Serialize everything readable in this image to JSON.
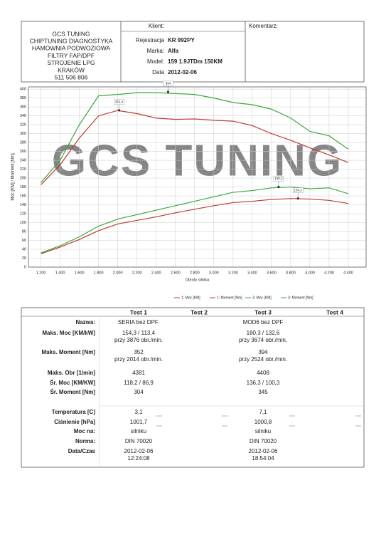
{
  "header": {
    "company": [
      "GCS TUNING",
      "CHIPTUNING DIAGNOSTYKA",
      "HAMOWNIA PODWOZIOWA",
      "FILTRY FAP/DPF",
      "STROJENIE LPG",
      "KRAKÓW",
      "511 506 806"
    ],
    "client_title": "Klient:",
    "fields": [
      {
        "label": "Rejestracja",
        "value": "KR 992PY"
      },
      {
        "label": "Marka:",
        "value": "Alfa"
      },
      {
        "label": "Model:",
        "value": "159 1.9JTDm 150KM"
      },
      {
        "label": "Data",
        "value": "2012-02-06"
      }
    ],
    "comment_title": "Komentarz:"
  },
  "chart_data": {
    "type": "line",
    "watermark": "GCS TUNING",
    "x_label": "Obroty silnika",
    "y_label": "Moc [KM] / Moment [Nm]",
    "x": [
      1200,
      1400,
      1600,
      1800,
      2000,
      2200,
      2400,
      2600,
      2800,
      3000,
      3200,
      3400,
      3600,
      3800,
      4000,
      4200,
      4400
    ],
    "series": [
      {
        "name": "1: Moc [KM]",
        "color": "#c0392b",
        "values": [
          30,
          45,
          62,
          82,
          97,
          105,
          113,
          122,
          130,
          138,
          145,
          148,
          152,
          154,
          153,
          150,
          143
        ]
      },
      {
        "name": "1: Moment [Nm]",
        "color": "#c0392b",
        "values": [
          185,
          230,
          290,
          340,
          352,
          345,
          335,
          332,
          333,
          330,
          328,
          318,
          300,
          285,
          268,
          252,
          235
        ]
      },
      {
        "name": "3: Moc [KM]",
        "color": "#3aa83a",
        "values": [
          32,
          48,
          68,
          92,
          108,
          118,
          128,
          138,
          148,
          158,
          168,
          172,
          178,
          180,
          176,
          178,
          165
        ]
      },
      {
        "name": "3: Moment [Nm]",
        "color": "#3aa83a",
        "values": [
          190,
          240,
          320,
          385,
          388,
          392,
          392,
          390,
          388,
          380,
          370,
          365,
          355,
          335,
          305,
          295,
          265
        ]
      }
    ],
    "annotations": [
      {
        "label": "352,4",
        "x": 2014,
        "y": 352.4
      },
      {
        "label": "394",
        "x": 2524,
        "y": 394
      },
      {
        "label": "180,3",
        "x": 3674,
        "y": 180.3
      },
      {
        "label": "154,3",
        "x": 3876,
        "y": 154.3
      }
    ],
    "xlim": [
      1070,
      4585
    ],
    "ylim": [
      0,
      405
    ],
    "xticks": [
      {
        "value": 1200,
        "label": "1.200"
      },
      {
        "value": 1400,
        "label": "1.400"
      },
      {
        "value": 1600,
        "label": "1.600"
      },
      {
        "value": 1800,
        "label": "1.800"
      },
      {
        "value": 2000,
        "label": "2.000"
      },
      {
        "value": 2200,
        "label": "2.200"
      },
      {
        "value": 2400,
        "label": "2.400"
      },
      {
        "value": 2600,
        "label": "2.600"
      },
      {
        "value": 2800,
        "label": "2.800"
      },
      {
        "value": 3000,
        "label": "3.000"
      },
      {
        "value": 3200,
        "label": "3.200"
      },
      {
        "value": 3400,
        "label": "3.400"
      },
      {
        "value": 3600,
        "label": "3.600"
      },
      {
        "value": 3800,
        "label": "3.800"
      },
      {
        "value": 4000,
        "label": "4.000"
      },
      {
        "value": 4200,
        "label": "4.200"
      },
      {
        "value": 4400,
        "label": "4.400"
      }
    ],
    "yticks": [
      0,
      20,
      40,
      60,
      80,
      100,
      120,
      140,
      160,
      180,
      200,
      220,
      240,
      260,
      280,
      300,
      320,
      340,
      360,
      380,
      400
    ],
    "grid": true
  },
  "table": {
    "columns": [
      "Test 1",
      "Test 2",
      "Test 3",
      "Test 4"
    ],
    "rows": [
      {
        "label": "Nazwa:",
        "test1": [
          "SERIA bez DPF."
        ],
        "test3": [
          "MOD6 bez DPF"
        ]
      },
      {
        "label": "Maks. Moc [KM/kW]",
        "test1": [
          "154,3 / 113,4",
          "przy 3876 obr./min."
        ],
        "test3": [
          "180,3 / 132,6",
          "przy 3674 obr./min."
        ]
      },
      {
        "label": "Maks. Moment [Nm]",
        "test1": [
          "352",
          "przy 2014 obr./min."
        ],
        "test3": [
          "394",
          "przy 2524 obr./min."
        ]
      },
      {
        "label": "Maks. Obr [1/min]",
        "test1": [
          "4381"
        ],
        "test3": [
          "4408"
        ]
      },
      {
        "label": "Śr. Moc [KM/KW]",
        "test1": [
          "118,2 / 86,9"
        ],
        "test3": [
          "136,3 / 100,3"
        ]
      },
      {
        "label": "Śr. Moment [Nm]",
        "test1": [
          "304"
        ],
        "test3": [
          "345"
        ]
      },
      {
        "label": "Temperatura [C]",
        "test1": [
          "3,1"
        ],
        "test3": [
          "7,1"
        ]
      },
      {
        "label": "Ciśnienie [hPa]",
        "test1": [
          "1001,7"
        ],
        "test3": [
          "1000,8"
        ]
      },
      {
        "label": "Moc na:",
        "test1": [
          "silniku"
        ],
        "test3": [
          "silniku"
        ]
      },
      {
        "label": "Norma:",
        "test1": [
          "DIN 70020"
        ],
        "test3": [
          "DIN 70020"
        ]
      },
      {
        "label": "Data/Czas",
        "test1": [
          "2012-02-06",
          "12:24:08"
        ],
        "test3": [
          "2012-02-06",
          "18:54:04"
        ]
      }
    ]
  }
}
